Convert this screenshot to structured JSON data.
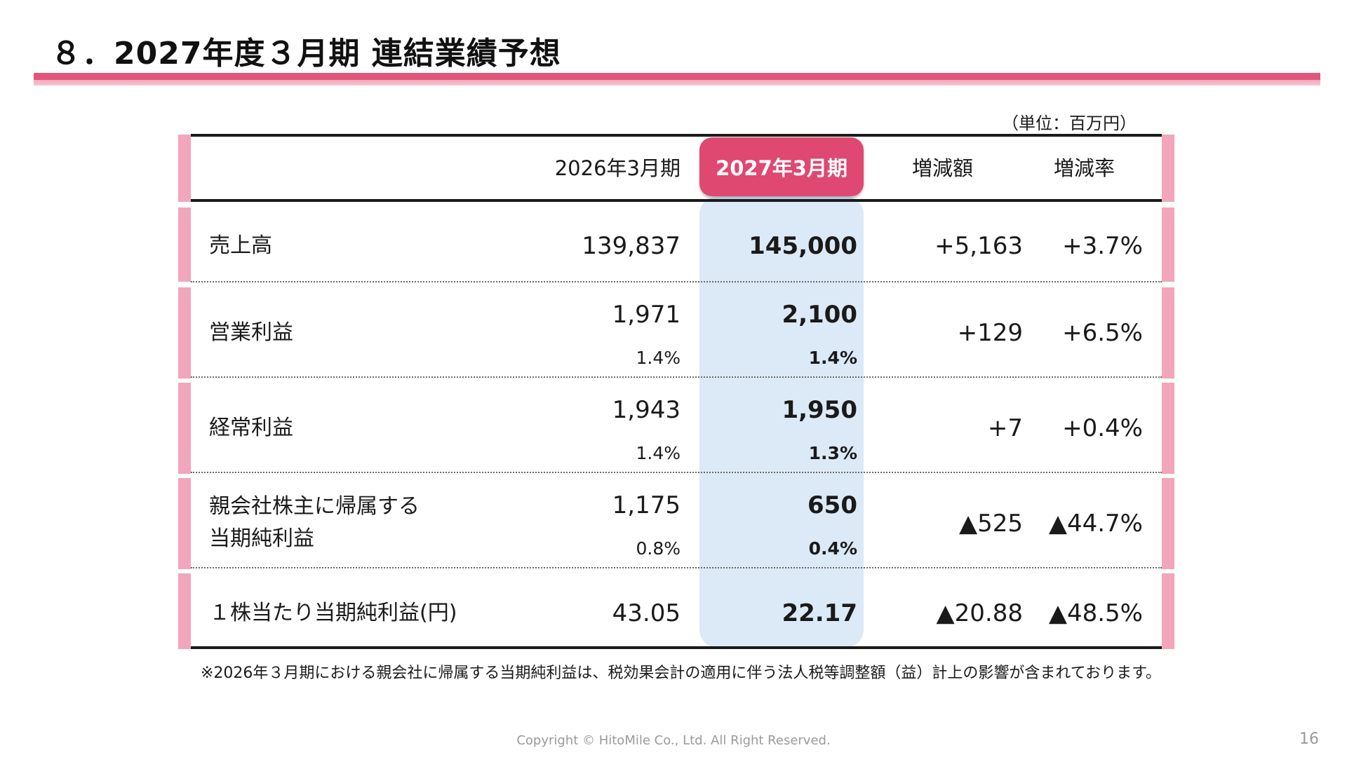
{
  "title": "８．2027年度３月期 連結業績予想",
  "unit_label": "（単位：百万円）",
  "headers": {
    "col_prev": "2026年3月期",
    "col_forecast": "2027年3月期",
    "col_diff": "増減額",
    "col_rate": "増減率"
  },
  "rows": [
    {
      "label": "売上高",
      "prev": "139,837",
      "forecast": "145,000",
      "diff": "+5,163",
      "rate": "+3.7%"
    },
    {
      "label": "営業利益",
      "prev": "1,971",
      "prev_margin": "1.4%",
      "forecast": "2,100",
      "forecast_margin": "1.4%",
      "diff": "+129",
      "rate": "+6.5%"
    },
    {
      "label": "経常利益",
      "prev": "1,943",
      "prev_margin": "1.4%",
      "forecast": "1,950",
      "forecast_margin": "1.3%",
      "diff": "+7",
      "rate": "+0.4%"
    },
    {
      "label_line1": "親会社株主に帰属する",
      "label_line2": "当期純利益",
      "prev": "1,175",
      "prev_margin": "0.8%",
      "forecast": "650",
      "forecast_margin": "0.4%",
      "diff": "▲525",
      "rate": "▲44.7%"
    },
    {
      "label": "１株当たり当期純利益(円)",
      "prev": "43.05",
      "forecast": "22.17",
      "diff": "▲20.88",
      "rate": "▲48.5%"
    }
  ],
  "note": "※2026年３月期における親会社に帰属する当期純利益は、税効果会計の適用に伴う法人税等調整額（益）計上の影響が含まれております。",
  "footer": "Copyright © HitoMile Co., Ltd. All Right Reserved.",
  "page_number": "16",
  "colors": {
    "accent": "#df4871",
    "side_bar": "#f1a6bb",
    "highlight_column": "#dce9f6"
  }
}
